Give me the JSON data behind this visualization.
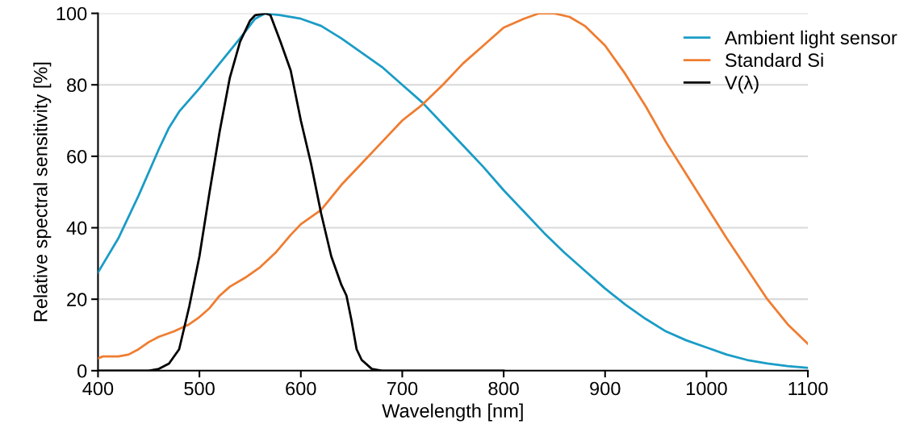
{
  "chart_data": {
    "type": "line",
    "xlabel": "Wavelength [nm]",
    "ylabel": "Relative spectral sensitivity [%]",
    "xlim": [
      400,
      1100
    ],
    "ylim": [
      0,
      100
    ],
    "xticks": [
      400,
      500,
      600,
      700,
      800,
      900,
      1000,
      1100
    ],
    "yticks": [
      0,
      20,
      40,
      60,
      80,
      100
    ],
    "grid": "y",
    "legend": "top right",
    "line_style": "solid",
    "series": [
      {
        "name": "Ambient light sensor",
        "color": "#1a9cc6",
        "x": [
          400,
          420,
          440,
          460,
          470,
          480,
          500,
          520,
          540,
          555,
          565,
          580,
          600,
          620,
          640,
          660,
          680,
          700,
          720,
          740,
          760,
          780,
          800,
          820,
          840,
          860,
          880,
          900,
          920,
          940,
          960,
          980,
          1000,
          1020,
          1040,
          1060,
          1080,
          1100
        ],
        "values": [
          27.5,
          37,
          49,
          62,
          68,
          72.5,
          79,
          86,
          93,
          98.5,
          100,
          99.5,
          98.5,
          96.5,
          93,
          89,
          85,
          80,
          75,
          69,
          63,
          57,
          50.5,
          44.5,
          38.5,
          33,
          28,
          23,
          18.5,
          14.5,
          11,
          8.5,
          6.5,
          4.5,
          3,
          2,
          1.3,
          0.8
        ]
      },
      {
        "name": "Standard Si",
        "color": "#ef7d31",
        "x": [
          400,
          405,
          420,
          430,
          440,
          450,
          460,
          475,
          490,
          500,
          510,
          520,
          530,
          545,
          560,
          575,
          590,
          600,
          620,
          640,
          660,
          680,
          700,
          720,
          740,
          760,
          780,
          800,
          820,
          835,
          850,
          865,
          880,
          900,
          920,
          940,
          960,
          980,
          1000,
          1020,
          1040,
          1060,
          1080,
          1100
        ],
        "values": [
          3.5,
          4,
          4,
          4.5,
          6,
          8,
          9.5,
          11,
          13,
          15,
          17.5,
          21,
          23.5,
          26,
          29,
          33,
          38,
          41,
          45,
          52,
          58,
          64,
          70,
          74.5,
          80,
          86,
          91,
          96,
          98.5,
          100,
          100,
          99,
          96.5,
          91,
          83,
          74,
          64,
          55,
          46,
          37,
          28.5,
          20,
          13,
          7.5
        ]
      },
      {
        "name": "V(λ)",
        "color": "#000000",
        "x": [
          400,
          450,
          460,
          470,
          480,
          490,
          500,
          510,
          520,
          530,
          540,
          550,
          555,
          565,
          570,
          580,
          590,
          600,
          610,
          620,
          630,
          640,
          645,
          650,
          655,
          660,
          670,
          680,
          800
        ],
        "values": [
          0,
          0,
          0.5,
          2,
          6,
          18,
          32,
          50,
          67,
          82,
          92,
          98,
          99.5,
          100,
          99.5,
          92,
          84,
          70,
          58,
          44,
          32,
          24,
          21,
          14,
          6,
          3,
          0.5,
          0,
          0
        ]
      }
    ]
  }
}
